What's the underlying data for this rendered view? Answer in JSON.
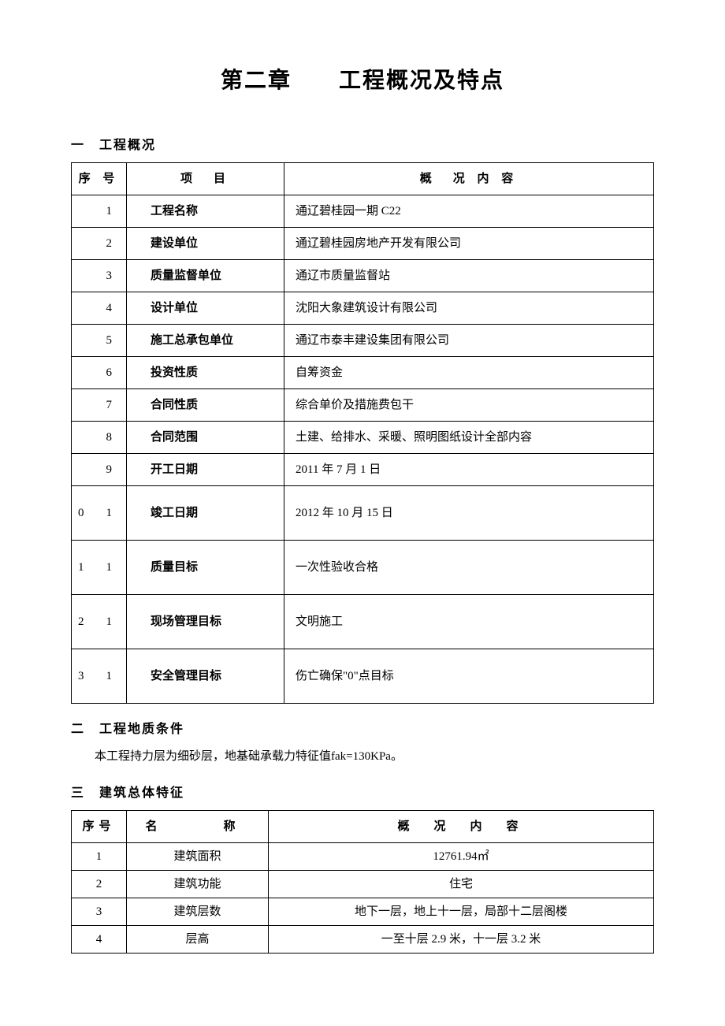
{
  "chapter_title": "第二章　　工程概况及特点",
  "section1": {
    "header": "一　工程概况",
    "table": {
      "columns": [
        "序 号",
        "项　目",
        "概　况 内 容"
      ],
      "rows": [
        {
          "seq": "1",
          "item": "工程名称",
          "content": "通辽碧桂园一期 C22"
        },
        {
          "seq": "2",
          "item": "建设单位",
          "content": "通辽碧桂园房地产开发有限公司"
        },
        {
          "seq": "3",
          "item": "质量监督单位",
          "content": "通辽市质量监督站"
        },
        {
          "seq": "4",
          "item": "设计单位",
          "content": "沈阳大象建筑设计有限公司"
        },
        {
          "seq": "5",
          "item": "施工总承包单位",
          "content": "通辽市泰丰建设集团有限公司"
        },
        {
          "seq": "6",
          "item": "投资性质",
          "content": "自筹资金"
        },
        {
          "seq": "7",
          "item": "合同性质",
          "content": "综合单价及措施费包干"
        },
        {
          "seq": "8",
          "item": "合同范围",
          "content": "土建、给排水、采暖、照明图纸设计全部内容"
        },
        {
          "seq": "9",
          "item": "开工日期",
          "content": "2011 年 7 月 1 日"
        },
        {
          "seq_a": "1",
          "seq_b": "0",
          "item": "竣工日期",
          "content": "2012 年 10 月 15 日",
          "tall": true
        },
        {
          "seq_a": "1",
          "seq_b": "1",
          "item": "质量目标",
          "content": "一次性验收合格",
          "tall": true
        },
        {
          "seq_a": "1",
          "seq_b": "2",
          "item": "现场管理目标",
          "content": "文明施工",
          "tall": true
        },
        {
          "seq_a": "1",
          "seq_b": "3",
          "item": "安全管理目标",
          "content": "伤亡确保\"0\"点目标",
          "tall": true
        }
      ]
    }
  },
  "section2": {
    "header": "二　工程地质条件",
    "body": "本工程持力层为细砂层，地基础承载力特征值fak=130KPa。"
  },
  "section3": {
    "header": "三　建筑总体特征",
    "table": {
      "columns": [
        "序号",
        "名　　称",
        "概　况　内　容"
      ],
      "rows": [
        {
          "seq": "1",
          "name": "建筑面积",
          "content": "12761.94㎡"
        },
        {
          "seq": "2",
          "name": "建筑功能",
          "content": "住宅"
        },
        {
          "seq": "3",
          "name": "建筑层数",
          "content": "地下一层，地上十一层，局部十二层阁楼"
        },
        {
          "seq": "4",
          "name": "层高",
          "content": "一至十层 2.9 米，十一层 3.2 米"
        }
      ]
    }
  }
}
